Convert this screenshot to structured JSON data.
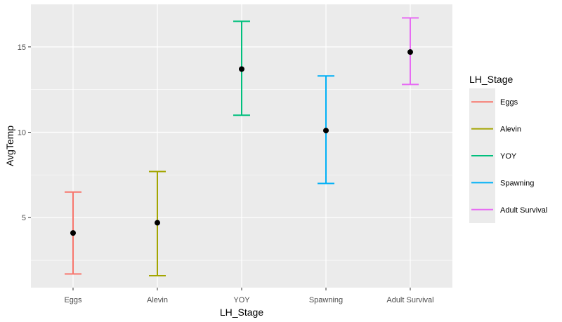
{
  "chart_data": {
    "type": "errorbar",
    "xlabel": "LH_Stage",
    "ylabel": "AvgTemp",
    "categories": [
      "Eggs",
      "Alevin",
      "YOY",
      "Spawning",
      "Adult Survival"
    ],
    "series": [
      {
        "name": "Eggs",
        "value": 4.1,
        "lower": 1.7,
        "upper": 6.5,
        "color": "#F8766D"
      },
      {
        "name": "Alevin",
        "value": 4.7,
        "lower": 1.6,
        "upper": 7.7,
        "color": "#A3A500"
      },
      {
        "name": "YOY",
        "value": 13.7,
        "lower": 11.0,
        "upper": 16.5,
        "color": "#00BF7D"
      },
      {
        "name": "Spawning",
        "value": 10.1,
        "lower": 7.0,
        "upper": 13.3,
        "color": "#00B0F6"
      },
      {
        "name": "Adult Survival",
        "value": 14.7,
        "lower": 12.8,
        "upper": 16.7,
        "color": "#E76BF3"
      }
    ],
    "yticks": [
      5,
      10,
      15
    ],
    "ylim": [
      0.9,
      17.5
    ],
    "grid": true,
    "point_color": "#000000",
    "panel_color": "#EBEBEB",
    "grid_color": "#FFFFFF",
    "legend": {
      "title": "LH_Stage",
      "position": "right",
      "entries": [
        "Eggs",
        "Alevin",
        "YOY",
        "Spawning",
        "Adult Survival"
      ]
    }
  }
}
